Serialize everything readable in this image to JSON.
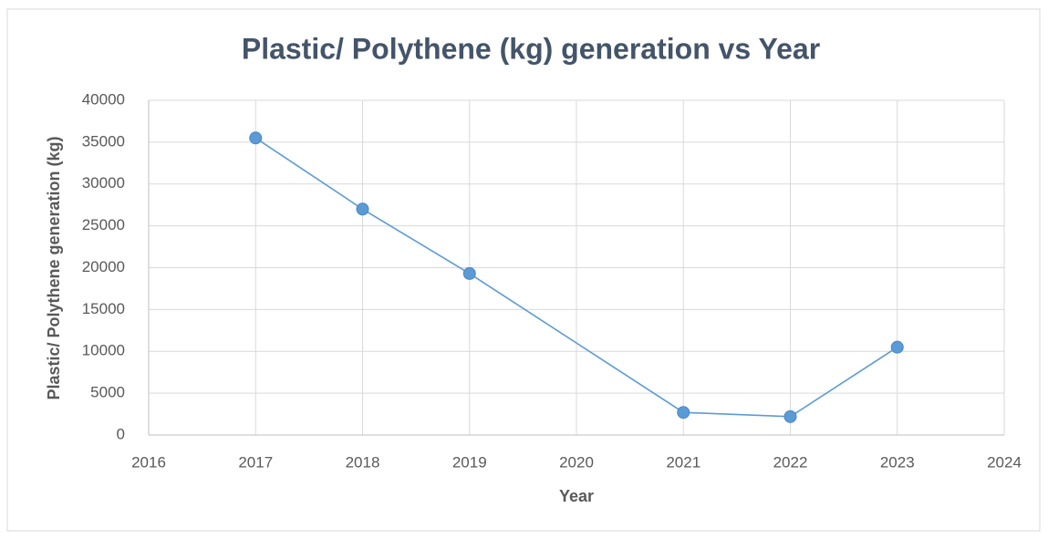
{
  "chart_data": {
    "type": "line",
    "title": "Plastic/ Polythene (kg) generation vs Year",
    "x_label": "Year",
    "y_label": "Plastic/ Polythene generation (kg)",
    "x": [
      2017,
      2018,
      2019,
      2021,
      2022,
      2023
    ],
    "series": [
      {
        "name": "Plastic/ Polythene generation (kg)",
        "color": "#5b9bd5",
        "values": [
          35500,
          27000,
          19300,
          2700,
          2200,
          10500
        ]
      }
    ],
    "xlim": [
      2016,
      2024
    ],
    "xticks": [
      2016,
      2017,
      2018,
      2019,
      2020,
      2021,
      2022,
      2023,
      2024
    ],
    "ylim": [
      0,
      40000
    ],
    "yticks": [
      0,
      5000,
      10000,
      15000,
      20000,
      25000,
      30000,
      35000,
      40000
    ],
    "grid": true
  }
}
